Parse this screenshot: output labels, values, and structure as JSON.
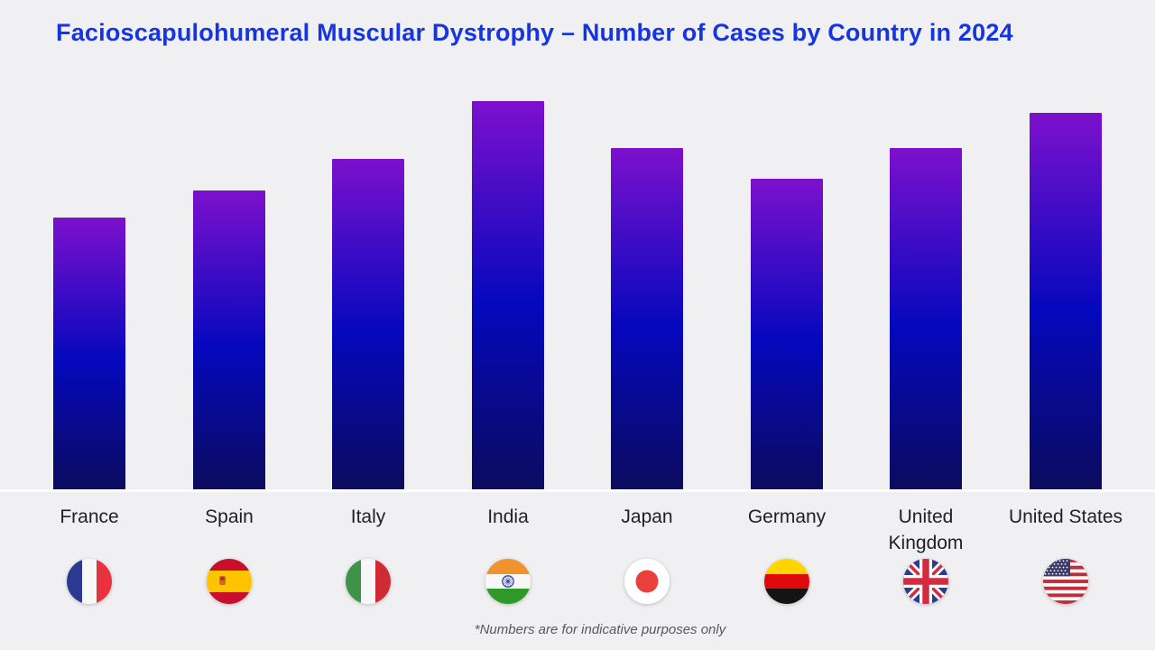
{
  "title": "Facioscapulohumeral Muscular Dystrophy – Number of Cases by Country in 2024",
  "footnote": "*Numbers are for indicative purposes only",
  "colors": {
    "title": "#1535E3",
    "background": "#F0F0F2",
    "label": "#202124",
    "footnote": "#58595B",
    "baseline": "#FCFCFD",
    "bar_gradient_top": "#7C10CD",
    "bar_gradient_mid": "#0508BE",
    "bar_gradient_bottom": "#0B0B5E"
  },
  "chart_data": {
    "type": "bar",
    "title": "Facioscapulohumeral Muscular Dystrophy – Number of Cases by Country in 2024",
    "categories": [
      "France",
      "Spain",
      "Italy",
      "India",
      "Japan",
      "Germany",
      "United Kingdom",
      "United States"
    ],
    "values": [
      70,
      77,
      85,
      100,
      88,
      80,
      88,
      97
    ],
    "xlabel": "",
    "ylabel": "",
    "ylim": [
      0,
      100
    ],
    "value_axis_visible": false,
    "gridlines": false,
    "legend": "none",
    "annotation": "*Numbers are for indicative purposes only",
    "flag_icons": [
      "france-flag-icon",
      "spain-flag-icon",
      "italy-flag-icon",
      "india-flag-icon",
      "japan-flag-icon",
      "germany-flag-icon",
      "united-kingdom-flag-icon",
      "united-states-flag-icon"
    ]
  }
}
